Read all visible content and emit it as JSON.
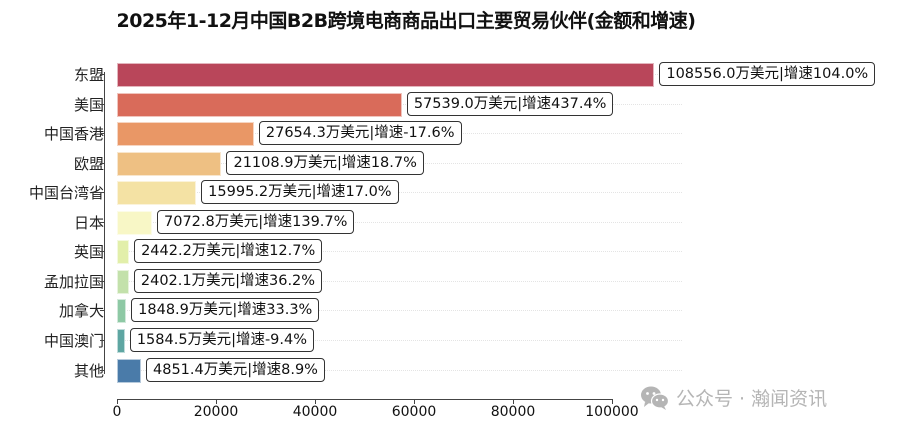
{
  "chart_data": {
    "type": "bar",
    "orientation": "horizontal",
    "title": "2025年1-12月中国B2B跨境电商商品出口主要贸易伙伴(金额和增速)",
    "xlabel": "",
    "ylabel": "",
    "xlim": [
      0,
      110000
    ],
    "xticks": [
      0,
      20000,
      40000,
      60000,
      80000,
      100000
    ],
    "unit": "万美元",
    "grid": "horizontal dotted",
    "categories": [
      "东盟",
      "美国",
      "中国香港",
      "欧盟",
      "中国台湾省",
      "日本",
      "英国",
      "孟加拉国",
      "加拿大",
      "中国澳门",
      "其他"
    ],
    "series": [
      {
        "name": "金额(万美元)",
        "values": [
          108556.0,
          57539.0,
          27654.3,
          21108.9,
          15995.2,
          7072.8,
          2442.2,
          2402.1,
          1848.9,
          1584.5,
          4851.4
        ]
      },
      {
        "name": "增速(%)",
        "values": [
          104.0,
          437.4,
          -17.6,
          18.7,
          17.0,
          139.7,
          12.7,
          36.2,
          33.3,
          -9.4,
          8.9
        ]
      }
    ],
    "colors": [
      "#b9465a",
      "#d96b5a",
      "#e99766",
      "#eec083",
      "#f4e2a4",
      "#f8f7c6",
      "#e2efaa",
      "#c3e1ab",
      "#8ec9a5",
      "#5ea6a2",
      "#4a7ba9"
    ],
    "labels": [
      "108556.0万美元|增速104.0%",
      "57539.0万美元|增速437.4%",
      "27654.3万美元|增速-17.6%",
      "21108.9万美元|增速18.7%",
      "15995.2万美元|增速17.0%",
      "7072.8万美元|增速139.7%",
      "2442.2万美元|增速12.7%",
      "2402.1万美元|增速36.2%",
      "1848.9万美元|增速33.3%",
      "1584.5万美元|增速-9.4%",
      "4851.4万美元|增速8.9%"
    ]
  },
  "watermark": {
    "text": "公众号 · 瀚闻资讯",
    "icon": "wechat-icon"
  }
}
